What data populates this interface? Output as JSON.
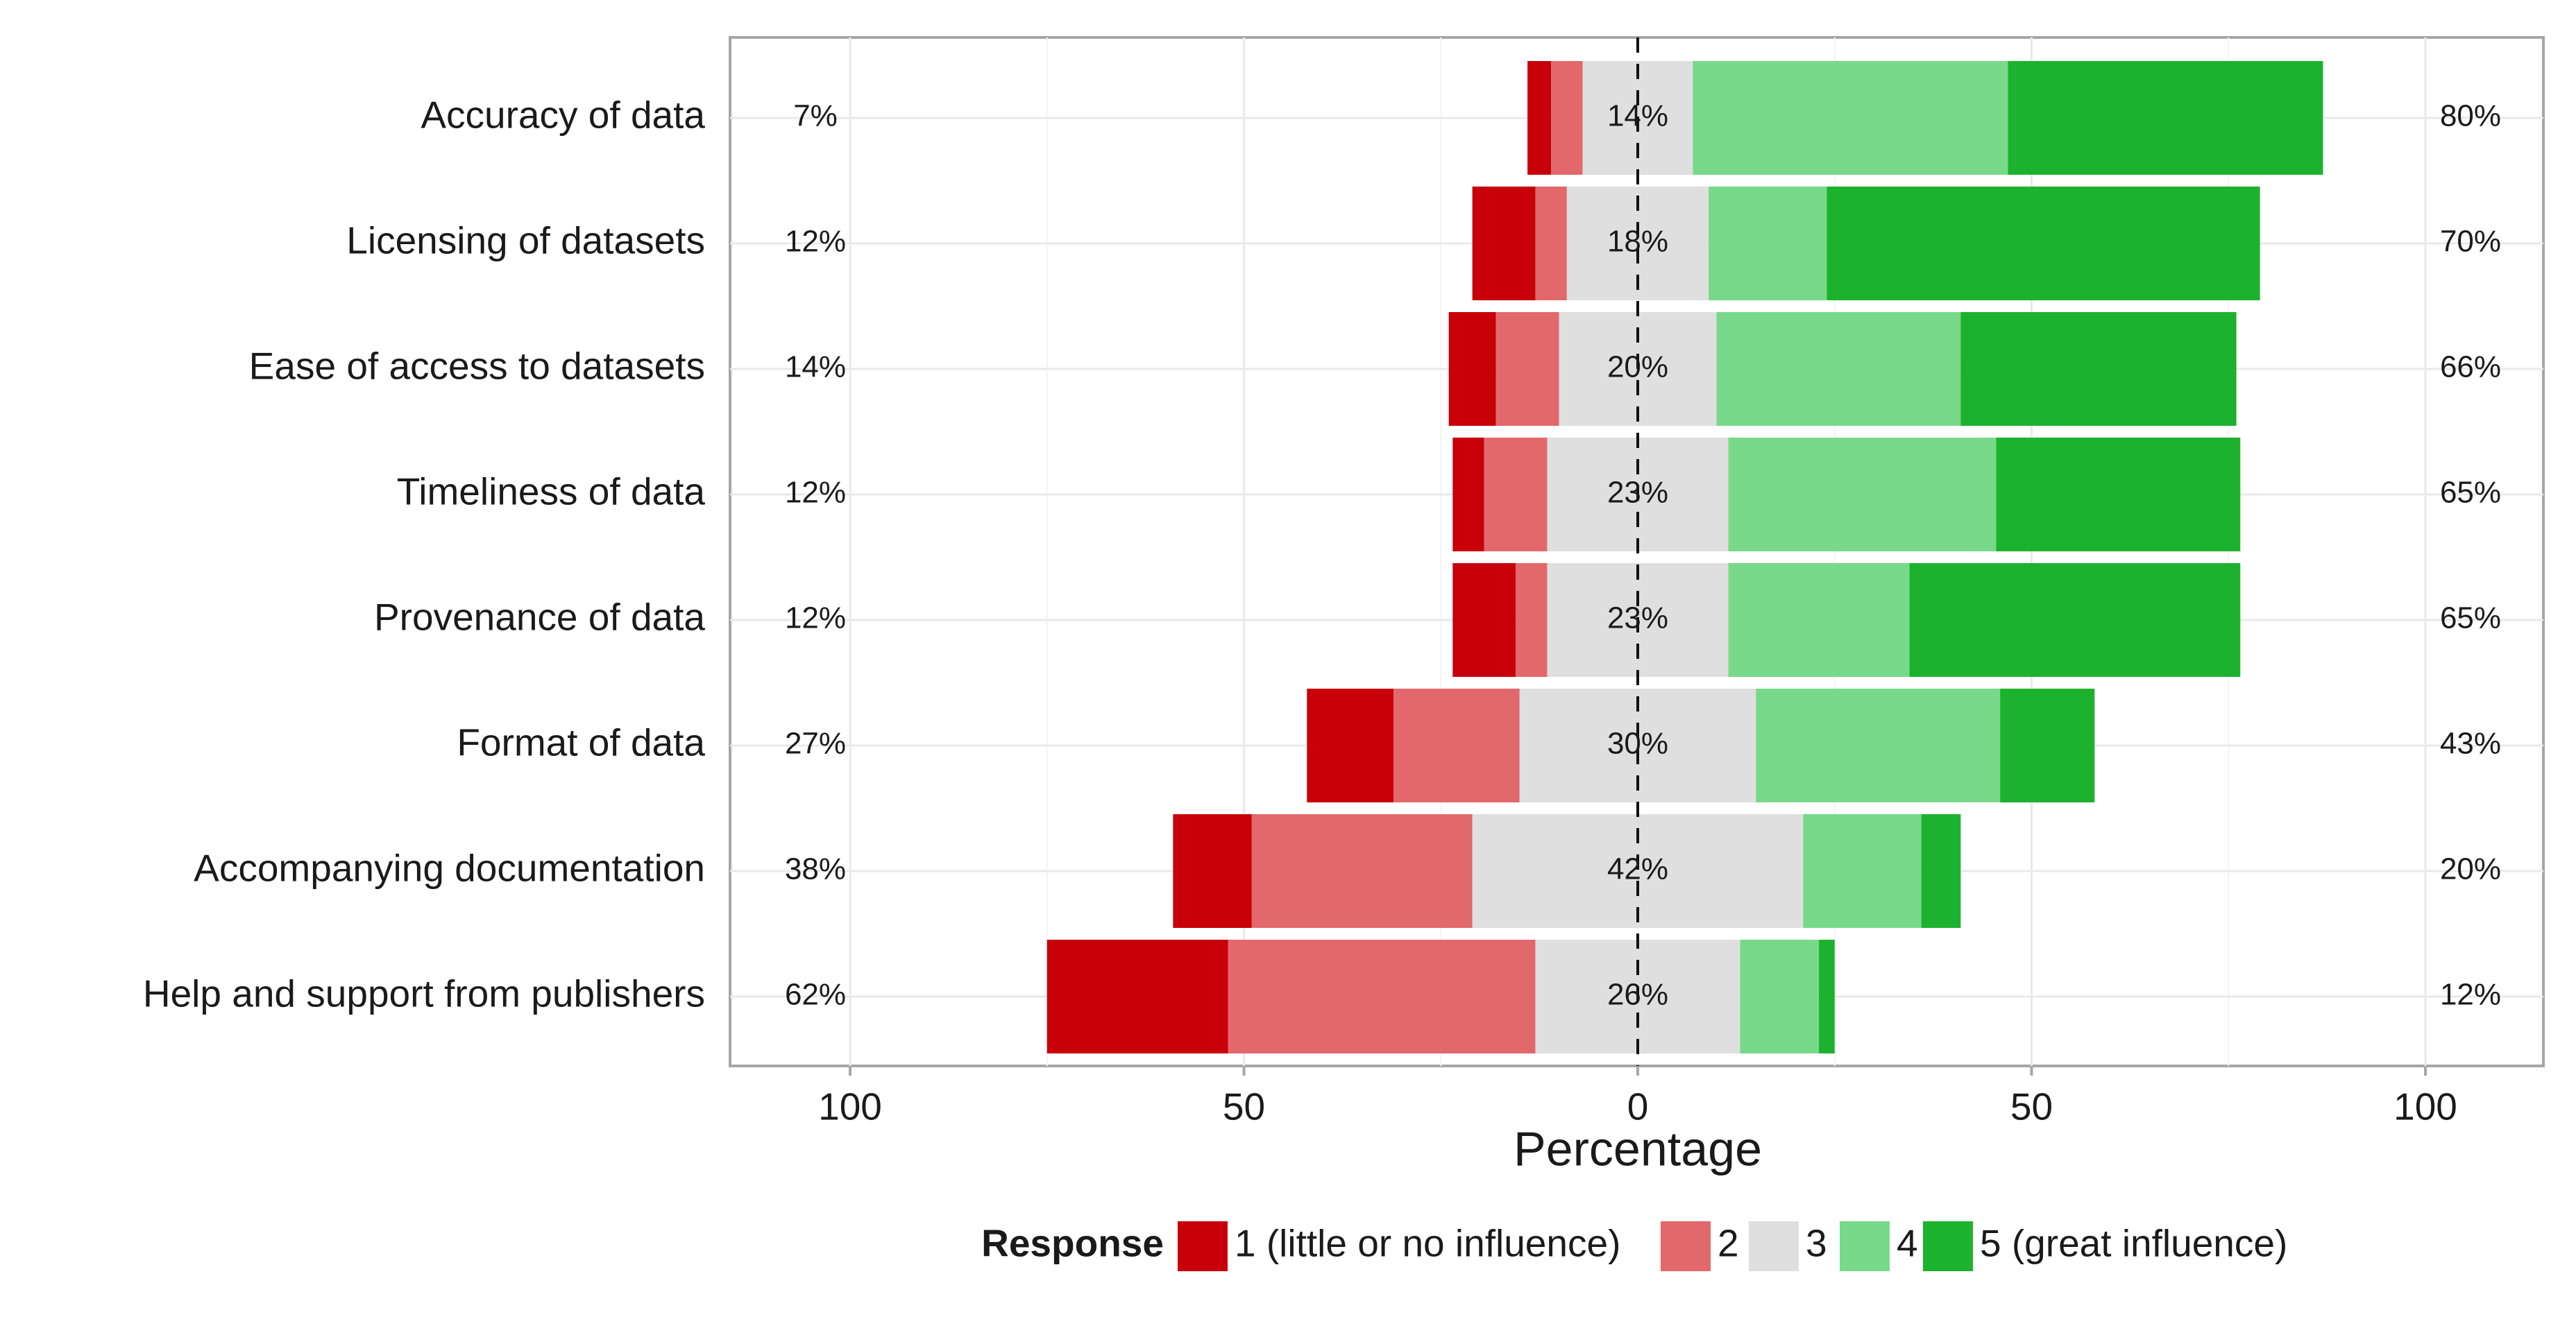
{
  "chart_data": {
    "type": "bar",
    "orientation": "horizontal-diverging",
    "categories": [
      "Accuracy of data",
      "Licensing of datasets",
      "Ease of access to datasets",
      "Timeliness of data",
      "Provenance of data",
      "Format of data",
      "Accompanying documentation",
      "Help and support from publishers"
    ],
    "series": [
      {
        "name": "1 (little or no influence)",
        "color": "#C8000A",
        "values": [
          3,
          8,
          6,
          4,
          8,
          11,
          10,
          23
        ]
      },
      {
        "name": "2",
        "color": "#E3686C",
        "values": [
          4,
          4,
          8,
          8,
          4,
          16,
          28,
          39
        ]
      },
      {
        "name": "3",
        "color": "#DFDFDF",
        "values": [
          14,
          18,
          20,
          23,
          23,
          30,
          42,
          26
        ]
      },
      {
        "name": "4",
        "color": "#78D98A",
        "values": [
          40,
          15,
          31,
          34,
          23,
          31,
          15,
          10
        ]
      },
      {
        "name": "5 (great influence)",
        "color": "#1DB22E",
        "values": [
          40,
          55,
          35,
          31,
          42,
          12,
          5,
          2
        ]
      }
    ],
    "left_labels": [
      "7%",
      "12%",
      "14%",
      "12%",
      "12%",
      "27%",
      "38%",
      "62%"
    ],
    "center_labels": [
      "14%",
      "18%",
      "20%",
      "23%",
      "23%",
      "30%",
      "42%",
      "26%"
    ],
    "right_labels": [
      "80%",
      "70%",
      "66%",
      "65%",
      "65%",
      "43%",
      "20%",
      "12%"
    ],
    "xlabel": "Percentage",
    "ylabel": "",
    "xlim": [
      -100,
      100
    ],
    "xticks": [
      -100,
      -50,
      0,
      50,
      100
    ],
    "xtick_labels": [
      "100",
      "50",
      "0",
      "50",
      "100"
    ],
    "legend": {
      "title": "Response",
      "position": "bottom"
    },
    "grid": true
  }
}
